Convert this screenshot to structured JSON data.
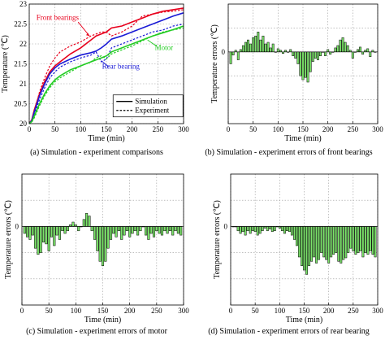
{
  "chart_data": [
    {
      "type": "line",
      "caption": "(a) Simulation - experiment comparisons",
      "xlabel": "Time (min)",
      "ylabel": "Temperature (℃)",
      "xlim": [
        0,
        300
      ],
      "ylim": [
        20,
        23
      ],
      "xticks": [
        0,
        50,
        100,
        150,
        200,
        250,
        300
      ],
      "yticks": [
        20,
        20.5,
        21,
        21.5,
        22,
        22.5,
        23
      ],
      "grid": true,
      "legend": {
        "position": "bottom-right",
        "entries": [
          {
            "label": "Simulation",
            "style": "solid"
          },
          {
            "label": "Experiment",
            "style": "dashed"
          }
        ]
      },
      "annotations": [
        {
          "text": "Front bearings",
          "color": "#e8001c"
        },
        {
          "text": "Rear bearing",
          "color": "#1a1ad6"
        },
        {
          "text": "Motor",
          "color": "#22cc22"
        }
      ],
      "series": [
        {
          "name": "Front bearings",
          "kind": "Simulation",
          "color": "#e8001c",
          "x": [
            0,
            5,
            10,
            20,
            30,
            40,
            50,
            60,
            80,
            100,
            120,
            130,
            140,
            150,
            160,
            180,
            200,
            220,
            240,
            260,
            280,
            300
          ],
          "y": [
            20.0,
            20.1,
            20.35,
            20.75,
            21.05,
            21.3,
            21.45,
            21.55,
            21.75,
            21.9,
            22.1,
            22.2,
            22.25,
            22.3,
            22.4,
            22.45,
            22.55,
            22.65,
            22.75,
            22.82,
            22.86,
            22.9
          ]
        },
        {
          "name": "Front bearings",
          "kind": "Experiment",
          "color": "#e8001c",
          "x": [
            0,
            5,
            10,
            20,
            30,
            40,
            50,
            60,
            80,
            100,
            120,
            130,
            140,
            150,
            160,
            180,
            200,
            220,
            240,
            260,
            280,
            300
          ],
          "y": [
            20.0,
            20.1,
            20.3,
            20.8,
            21.15,
            21.45,
            21.65,
            21.8,
            21.95,
            22.05,
            22.2,
            22.25,
            22.3,
            22.3,
            22.2,
            22.3,
            22.45,
            22.7,
            22.75,
            22.8,
            22.82,
            22.86
          ]
        },
        {
          "name": "Rear bearing",
          "kind": "Simulation",
          "color": "#1a1ad6",
          "x": [
            0,
            5,
            10,
            20,
            30,
            40,
            50,
            60,
            80,
            100,
            120,
            130,
            140,
            150,
            160,
            180,
            200,
            220,
            240,
            260,
            280,
            300
          ],
          "y": [
            20.0,
            20.08,
            20.3,
            20.7,
            21.0,
            21.25,
            21.4,
            21.5,
            21.62,
            21.72,
            21.78,
            21.82,
            21.9,
            22.0,
            22.12,
            22.2,
            22.3,
            22.4,
            22.5,
            22.6,
            22.7,
            22.78
          ]
        },
        {
          "name": "Rear bearing",
          "kind": "Experiment",
          "color": "#1a1ad6",
          "x": [
            0,
            5,
            10,
            20,
            30,
            40,
            50,
            60,
            80,
            100,
            120,
            130,
            140,
            150,
            160,
            180,
            200,
            220,
            240,
            260,
            280,
            300
          ],
          "y": [
            20.0,
            20.05,
            20.25,
            20.6,
            20.9,
            21.15,
            21.3,
            21.42,
            21.55,
            21.65,
            21.72,
            21.8,
            21.55,
            21.62,
            21.9,
            22.0,
            22.1,
            22.2,
            22.3,
            22.35,
            22.45,
            22.5
          ]
        },
        {
          "name": "Motor",
          "kind": "Simulation",
          "color": "#22cc22",
          "x": [
            0,
            5,
            10,
            20,
            30,
            40,
            50,
            60,
            80,
            100,
            120,
            130,
            140,
            150,
            160,
            180,
            200,
            220,
            240,
            260,
            280,
            300
          ],
          "y": [
            20.0,
            20.05,
            20.2,
            20.5,
            20.75,
            20.95,
            21.1,
            21.2,
            21.35,
            21.45,
            21.55,
            21.6,
            21.65,
            21.7,
            21.8,
            21.9,
            22.0,
            22.1,
            22.2,
            22.28,
            22.36,
            22.45
          ]
        },
        {
          "name": "Motor",
          "kind": "Experiment",
          "color": "#22cc22",
          "x": [
            0,
            5,
            10,
            20,
            30,
            40,
            50,
            60,
            80,
            100,
            120,
            130,
            140,
            150,
            160,
            180,
            200,
            220,
            240,
            260,
            280,
            300
          ],
          "y": [
            20.0,
            20.04,
            20.15,
            20.45,
            20.7,
            20.9,
            21.05,
            21.15,
            21.3,
            21.45,
            21.55,
            21.65,
            21.7,
            21.62,
            21.75,
            21.85,
            21.95,
            22.08,
            22.2,
            22.3,
            22.35,
            22.4
          ]
        }
      ]
    },
    {
      "type": "bar",
      "caption": "(b) Simulation - experiment errors of front bearings",
      "xlabel": "Time (min)",
      "ylabel": "Temperature errors (℃)",
      "xlim": [
        0,
        300
      ],
      "xticks": [
        0,
        50,
        100,
        150,
        200,
        250,
        300
      ],
      "ytick_labels": [
        "0"
      ],
      "grid": true,
      "bar_color": "#7be36a",
      "x": [
        5,
        10,
        15,
        20,
        25,
        30,
        35,
        40,
        45,
        50,
        55,
        60,
        65,
        70,
        75,
        80,
        85,
        90,
        95,
        100,
        105,
        110,
        115,
        120,
        125,
        130,
        135,
        140,
        145,
        150,
        155,
        160,
        165,
        170,
        175,
        180,
        185,
        190,
        195,
        200,
        205,
        210,
        215,
        220,
        225,
        230,
        235,
        240,
        245,
        250,
        255,
        260,
        265,
        270,
        275,
        280,
        285,
        290,
        295
      ],
      "values": [
        -0.15,
        -0.04,
        0.02,
        -0.1,
        0.03,
        0.08,
        0.12,
        0.15,
        0.1,
        0.18,
        0.2,
        0.25,
        0.15,
        0.2,
        0.1,
        0.12,
        0.05,
        0.1,
        0.0,
        0.04,
        0.02,
        -0.02,
        0.02,
        0.0,
        0.03,
        -0.05,
        -0.08,
        -0.15,
        -0.3,
        -0.35,
        -0.32,
        -0.38,
        -0.25,
        -0.12,
        -0.08,
        -0.1,
        -0.05,
        0.0,
        -0.05,
        0.03,
        -0.03,
        0.0,
        0.05,
        0.08,
        0.15,
        0.18,
        0.12,
        0.08,
        0.02,
        -0.08,
        0.0,
        0.03,
        0.06,
        -0.03,
        0.02,
        0.04,
        -0.06,
        0.02,
        0.0
      ]
    },
    {
      "type": "bar",
      "caption": "(c) Simulation - experiment errors of motor",
      "xlabel": "Time (min)",
      "ylabel": "Temperature errors (℃)",
      "xlim": [
        0,
        300
      ],
      "xticks": [
        0,
        50,
        100,
        150,
        200,
        250,
        300
      ],
      "ytick_labels": [
        "0"
      ],
      "grid": true,
      "bar_color": "#7be36a",
      "x": [
        5,
        10,
        15,
        20,
        25,
        30,
        35,
        40,
        45,
        50,
        55,
        60,
        65,
        70,
        75,
        80,
        85,
        90,
        95,
        100,
        105,
        110,
        115,
        120,
        125,
        130,
        135,
        140,
        145,
        150,
        155,
        160,
        165,
        170,
        175,
        180,
        185,
        190,
        195,
        200,
        205,
        210,
        215,
        220,
        225,
        230,
        235,
        240,
        245,
        250,
        255,
        260,
        265,
        270,
        275,
        280,
        285,
        290,
        295
      ],
      "values": [
        -0.08,
        -0.12,
        -0.15,
        -0.1,
        -0.25,
        -0.32,
        -0.3,
        -0.18,
        -0.2,
        -0.28,
        -0.12,
        -0.22,
        -0.1,
        -0.15,
        -0.05,
        -0.08,
        -0.05,
        0.02,
        0.05,
        0.02,
        -0.05,
        0.0,
        0.08,
        0.15,
        0.12,
        -0.05,
        -0.15,
        -0.28,
        -0.4,
        -0.45,
        -0.4,
        -0.25,
        -0.15,
        -0.08,
        -0.12,
        -0.05,
        -0.15,
        -0.1,
        -0.05,
        -0.12,
        -0.08,
        -0.05,
        -0.1,
        -0.05,
        0.0,
        -0.1,
        -0.15,
        -0.08,
        -0.12,
        -0.05,
        -0.08,
        -0.1,
        -0.05,
        -0.08,
        -0.05,
        -0.1,
        -0.05,
        -0.08,
        -0.1
      ]
    },
    {
      "type": "bar",
      "caption": "(d) Simulation - experiment errors of rear bearing",
      "xlabel": "Time (min)",
      "ylabel": "Temperature errors (℃)",
      "xlim": [
        0,
        300
      ],
      "xticks": [
        0,
        50,
        100,
        150,
        200,
        250,
        300
      ],
      "ytick_labels": [
        "0"
      ],
      "grid": true,
      "bar_color": "#7be36a",
      "x": [
        5,
        10,
        15,
        20,
        25,
        30,
        35,
        40,
        45,
        50,
        55,
        60,
        65,
        70,
        75,
        80,
        85,
        90,
        95,
        100,
        105,
        110,
        115,
        120,
        125,
        130,
        135,
        140,
        145,
        150,
        155,
        160,
        165,
        170,
        175,
        180,
        185,
        190,
        195,
        200,
        205,
        210,
        215,
        220,
        225,
        230,
        235,
        240,
        245,
        250,
        255,
        260,
        265,
        270,
        275,
        280,
        285,
        290,
        295
      ],
      "values": [
        0.0,
        0.0,
        -0.05,
        -0.08,
        -0.06,
        -0.1,
        -0.05,
        -0.08,
        -0.05,
        -0.06,
        -0.1,
        -0.08,
        -0.05,
        -0.02,
        -0.05,
        -0.03,
        -0.06,
        -0.05,
        0.0,
        -0.02,
        -0.05,
        -0.08,
        -0.05,
        -0.06,
        -0.1,
        -0.15,
        -0.22,
        -0.35,
        -0.45,
        -0.5,
        -0.55,
        -0.45,
        -0.4,
        -0.35,
        -0.42,
        -0.38,
        -0.3,
        -0.35,
        -0.38,
        -0.42,
        -0.35,
        -0.32,
        -0.3,
        -0.4,
        -0.42,
        -0.38,
        -0.36,
        -0.3,
        -0.25,
        -0.28,
        -0.32,
        -0.3,
        -0.28,
        -0.35,
        -0.3,
        -0.32,
        -0.28,
        -0.32,
        -0.35
      ]
    }
  ]
}
